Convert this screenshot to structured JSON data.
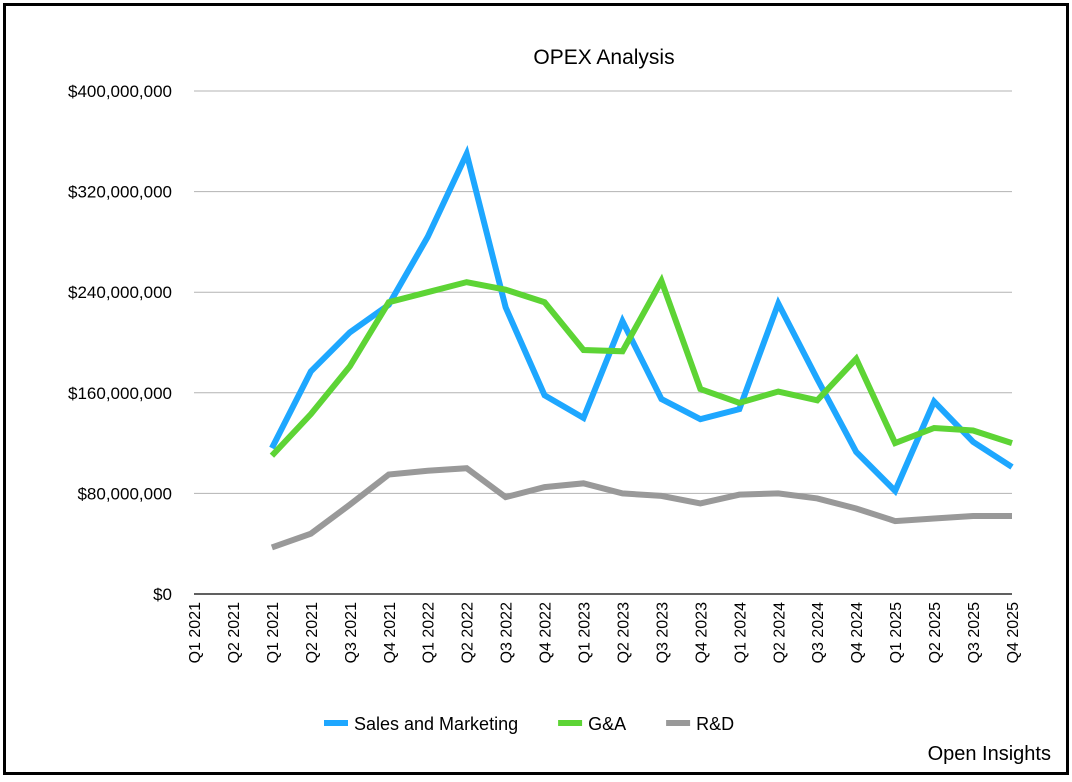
{
  "chart_data": {
    "type": "line",
    "title": "OPEX Analysis",
    "xlabel": "",
    "ylabel": "",
    "ylim": [
      0,
      400000000
    ],
    "yticks": [
      0,
      80000000,
      160000000,
      240000000,
      320000000,
      400000000
    ],
    "ytick_labels": [
      "$0",
      "$80,000,000",
      "$160,000,000",
      "$240,000,000",
      "$320,000,000",
      "$400,000,000"
    ],
    "grid": true,
    "legend_position": "bottom",
    "categories": [
      "Q1 2021",
      "Q2 2021",
      "Q1 2021",
      "Q2 2021",
      "Q3 2021",
      "Q4 2021",
      "Q1 2022",
      "Q2 2022",
      "Q3 2022",
      "Q4 2022",
      "Q1 2023",
      "Q2 2023",
      "Q3 2023",
      "Q4 2023",
      "Q1 2024",
      "Q2 2024",
      "Q3 2024",
      "Q4 2024",
      "Q1 2025",
      "Q2 2025",
      "Q3 2025",
      "Q4 2025"
    ],
    "series": [
      {
        "name": "Sales and Marketing",
        "color": "#1ea7ff",
        "values": [
          null,
          null,
          116000000,
          177000000,
          208000000,
          230000000,
          284000000,
          350000000,
          228000000,
          158000000,
          140000000,
          217000000,
          155000000,
          139000000,
          147000000,
          231000000,
          171000000,
          113000000,
          82000000,
          153000000,
          121000000,
          101000000
        ]
      },
      {
        "name": "G&A",
        "color": "#5dd435",
        "values": [
          null,
          null,
          110000000,
          143000000,
          181000000,
          232000000,
          240000000,
          248000000,
          242000000,
          232000000,
          194000000,
          193000000,
          249000000,
          163000000,
          152000000,
          161000000,
          154000000,
          187000000,
          120000000,
          132000000,
          130000000,
          120000000
        ]
      },
      {
        "name": "R&D",
        "color": "#999999",
        "values": [
          null,
          null,
          37000000,
          48000000,
          71000000,
          95000000,
          98000000,
          100000000,
          77000000,
          85000000,
          88000000,
          80000000,
          78000000,
          72000000,
          79000000,
          80000000,
          76000000,
          68000000,
          58000000,
          60000000,
          62000000,
          62000000
        ]
      }
    ]
  },
  "footer": {
    "credit": "Open Insights"
  }
}
